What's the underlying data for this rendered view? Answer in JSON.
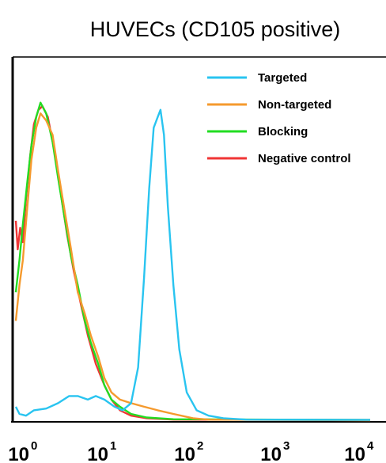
{
  "chart_data": {
    "type": "line",
    "title": "HUVECs (CD105 positive)",
    "xlabel": "",
    "ylabel": "",
    "x_scale": "log",
    "xlim": [
      1,
      10000
    ],
    "ylim": [
      0,
      100
    ],
    "x_ticks": [
      {
        "base": "10",
        "exp": "0"
      },
      {
        "base": "10",
        "exp": "1"
      },
      {
        "base": "10",
        "exp": "2"
      },
      {
        "base": "10",
        "exp": "3"
      },
      {
        "base": "10",
        "exp": "4"
      }
    ],
    "legend_position": "top-right",
    "grid": false,
    "series": [
      {
        "name": "Targeted",
        "color": "#29c4f0",
        "points": [
          [
            1.0,
            4
          ],
          [
            1.1,
            2
          ],
          [
            1.3,
            1.5
          ],
          [
            1.6,
            3
          ],
          [
            2.2,
            3.5
          ],
          [
            3,
            5
          ],
          [
            4,
            7
          ],
          [
            5,
            7
          ],
          [
            6.5,
            6
          ],
          [
            8,
            7
          ],
          [
            10,
            6
          ],
          [
            13,
            4
          ],
          [
            16,
            3
          ],
          [
            20,
            5
          ],
          [
            24,
            15
          ],
          [
            28,
            40
          ],
          [
            32,
            65
          ],
          [
            36,
            82
          ],
          [
            40,
            85
          ],
          [
            43,
            87
          ],
          [
            47,
            80
          ],
          [
            52,
            60
          ],
          [
            60,
            38
          ],
          [
            70,
            20
          ],
          [
            85,
            8
          ],
          [
            110,
            3
          ],
          [
            150,
            1.5
          ],
          [
            220,
            0.8
          ],
          [
            400,
            0.4
          ],
          [
            10000,
            0.3
          ]
        ]
      },
      {
        "name": "Non-targeted",
        "color": "#f59a2e",
        "points": [
          [
            1.0,
            28
          ],
          [
            1.1,
            38
          ],
          [
            1.2,
            45
          ],
          [
            1.35,
            60
          ],
          [
            1.5,
            73
          ],
          [
            1.7,
            82
          ],
          [
            1.9,
            86
          ],
          [
            2.2,
            84
          ],
          [
            2.6,
            80
          ],
          [
            3.0,
            70
          ],
          [
            3.6,
            58
          ],
          [
            4.2,
            48
          ],
          [
            5,
            36
          ],
          [
            6,
            30
          ],
          [
            7,
            24
          ],
          [
            8.5,
            18
          ],
          [
            10,
            12
          ],
          [
            12,
            8
          ],
          [
            15,
            6
          ],
          [
            20,
            5
          ],
          [
            28,
            4
          ],
          [
            40,
            3
          ],
          [
            60,
            2
          ],
          [
            100,
            0.8
          ],
          [
            150,
            0.4
          ],
          [
            10000,
            0.2
          ]
        ]
      },
      {
        "name": "Blocking",
        "color": "#22dd22",
        "points": [
          [
            1.0,
            36
          ],
          [
            1.1,
            45
          ],
          [
            1.2,
            55
          ],
          [
            1.35,
            67
          ],
          [
            1.5,
            77
          ],
          [
            1.7,
            85
          ],
          [
            1.9,
            89
          ],
          [
            2.2,
            86
          ],
          [
            2.6,
            78
          ],
          [
            3.0,
            68
          ],
          [
            3.6,
            56
          ],
          [
            4.2,
            46
          ],
          [
            5,
            38
          ],
          [
            6,
            28
          ],
          [
            7,
            22
          ],
          [
            8.5,
            16
          ],
          [
            10,
            10
          ],
          [
            12,
            6
          ],
          [
            15,
            4
          ],
          [
            20,
            2
          ],
          [
            30,
            1
          ],
          [
            60,
            0.5
          ],
          [
            10000,
            0.3
          ]
        ]
      },
      {
        "name": "Negative control",
        "color": "#f03535",
        "points": [
          [
            1.0,
            56
          ],
          [
            1.05,
            48
          ],
          [
            1.12,
            54
          ],
          [
            1.2,
            50
          ],
          [
            1.3,
            62
          ],
          [
            1.45,
            74
          ],
          [
            1.6,
            83
          ],
          [
            1.8,
            87
          ],
          [
            2.0,
            88
          ],
          [
            2.3,
            85
          ],
          [
            2.7,
            76
          ],
          [
            3.2,
            64
          ],
          [
            3.8,
            52
          ],
          [
            4.5,
            42
          ],
          [
            5.5,
            32
          ],
          [
            6.5,
            24
          ],
          [
            8,
            16
          ],
          [
            10,
            10
          ],
          [
            12,
            6
          ],
          [
            15,
            3
          ],
          [
            20,
            1.5
          ],
          [
            30,
            0.8
          ],
          [
            60,
            0.4
          ],
          [
            10000,
            0.3
          ]
        ]
      }
    ]
  }
}
